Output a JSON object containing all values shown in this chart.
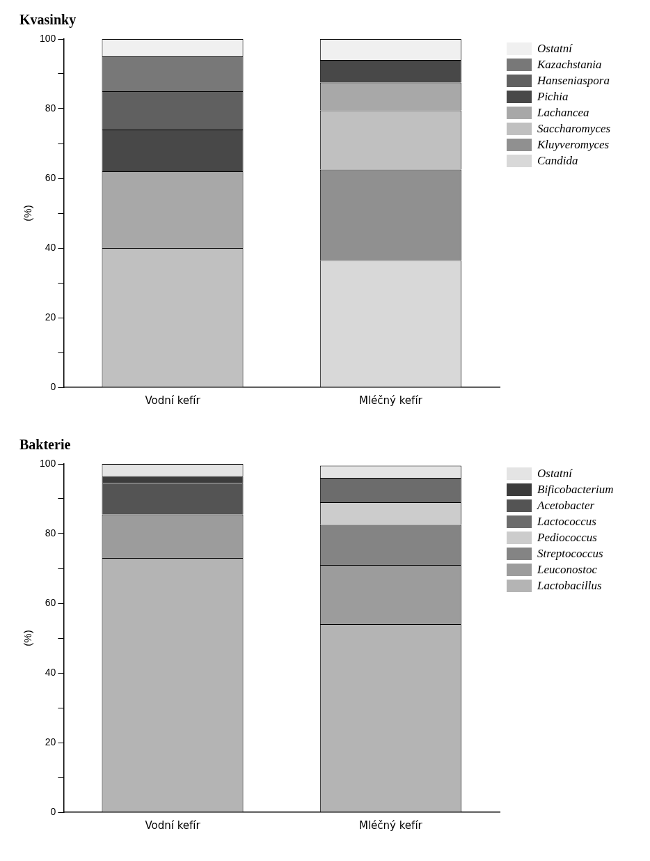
{
  "chart_data": [
    {
      "type": "bar",
      "title": "Kvasinky",
      "ylabel": "(%)",
      "categories": [
        "Vodní kefír",
        "Mléčný kefír"
      ],
      "stacked": true,
      "legend": "top right",
      "ylim": [
        0,
        100
      ],
      "yticks": [
        0,
        {
          "value": 10,
          "label": null
        },
        20,
        {
          "value": 30,
          "label": null
        },
        40,
        {
          "value": 50,
          "label": null
        },
        60,
        {
          "value": 70,
          "label": null
        },
        80,
        {
          "value": 90,
          "label": null
        },
        100
      ],
      "series": [
        {
          "name": "Candida",
          "color": "#d8d8d8",
          "values": [
            0,
            36.5
          ]
        },
        {
          "name": "Kluyveromyces",
          "color": "#909090",
          "values": [
            0,
            26
          ]
        },
        {
          "name": "Saccharomyces",
          "color": "#c0c0c0",
          "values": [
            40,
            17
          ]
        },
        {
          "name": "Lachancea",
          "color": "#a8a8a8",
          "values": [
            22,
            8
          ]
        },
        {
          "name": "Pichia",
          "color": "#484848",
          "values": [
            12,
            6.5
          ]
        },
        {
          "name": "Hanseniaspora",
          "color": "#606060",
          "values": [
            11,
            0
          ]
        },
        {
          "name": "Kazachstania",
          "color": "#787878",
          "values": [
            10,
            0
          ]
        },
        {
          "name": "Ostatní",
          "color": "#f0f0f0",
          "values": [
            5,
            6
          ]
        }
      ]
    },
    {
      "type": "bar",
      "title": "Bakterie",
      "ylabel": "(%)",
      "categories": [
        "Vodní kefír",
        "Mléčný kefír"
      ],
      "stacked": true,
      "legend": "top right",
      "ylim": [
        0,
        100
      ],
      "yticks": [
        0,
        {
          "value": 10,
          "label": null
        },
        20,
        {
          "value": 30,
          "label": null
        },
        40,
        {
          "value": 50,
          "label": null
        },
        60,
        {
          "value": 70,
          "label": null
        },
        80,
        {
          "value": 90,
          "label": null
        },
        100
      ],
      "series": [
        {
          "name": "Lactobacillus",
          "color": "#b4b4b4",
          "values": [
            73,
            54
          ]
        },
        {
          "name": "Leuconostoc",
          "color": "#9c9c9c",
          "values": [
            12.5,
            17
          ]
        },
        {
          "name": "Streptococcus",
          "color": "#848484",
          "values": [
            0,
            11.5
          ]
        },
        {
          "name": "Pediococcus",
          "color": "#cccccc",
          "values": [
            0,
            6.5
          ]
        },
        {
          "name": "Lactococcus",
          "color": "#6c6c6c",
          "values": [
            0,
            7
          ]
        },
        {
          "name": "Acetobacter",
          "color": "#545454",
          "values": [
            9,
            0
          ]
        },
        {
          "name": "Bificobacterium",
          "color": "#3c3c3c",
          "values": [
            2,
            0
          ]
        },
        {
          "name": "Ostatní",
          "color": "#e4e4e4",
          "values": [
            3.5,
            3.5
          ]
        }
      ]
    }
  ]
}
